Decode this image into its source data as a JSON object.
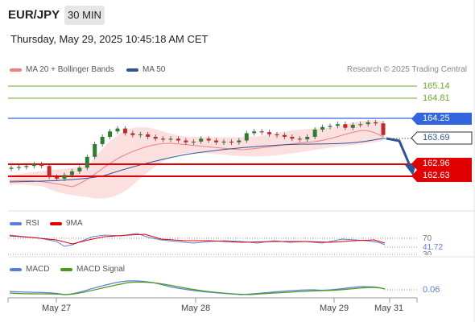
{
  "header": {
    "symbol": "EUR/JPY",
    "timeframe": "30 MIN",
    "datetime": "Thursday, May 29, 2025 10:45:18 AM CET"
  },
  "legend": {
    "ma20": {
      "label": "MA 20 + Bollinger Bands",
      "color": "#f08080"
    },
    "ma50": {
      "label": "MA 50",
      "color": "#2f5597"
    },
    "credit": "Research © 2025 Trading Central"
  },
  "levels": {
    "r2": "165.14",
    "r1": "164.81",
    "pivot": "164.25",
    "current": "163.69",
    "s1": "162.96",
    "s2": "162.63"
  },
  "rsi": {
    "label": "RSI",
    "ma_label": "9MA",
    "level_70": "70",
    "value": "41.72",
    "level_30": "30",
    "rsi_color": "#5b7fd6",
    "ma_color": "#e00000"
  },
  "macd": {
    "label": "MACD",
    "signal_label": "MACD Signal",
    "value": "0.06",
    "macd_color": "#5b7fd6",
    "signal_color": "#4a9a1a"
  },
  "xaxis": {
    "labels": [
      "May 27",
      "May 28",
      "May 29",
      "May 31"
    ]
  },
  "colors": {
    "up": "#2e7d32",
    "down": "#c62828",
    "resistance": "#6aaa2a",
    "pivot": "#3366dd",
    "support": "#e00000",
    "arrow": "#2f5597"
  },
  "chart_data": {
    "type": "candlestick",
    "series": [
      {
        "name": "Price",
        "values": [
          163.0,
          163.02,
          163.05,
          163.1,
          163.05,
          162.75,
          162.7,
          162.8,
          162.9,
          163.0,
          163.3,
          163.65,
          163.85,
          164.0,
          164.08,
          163.95,
          163.9,
          163.92,
          163.85,
          163.8,
          163.78,
          163.8,
          163.75,
          163.7,
          163.72,
          163.8,
          163.75,
          163.7,
          163.72,
          163.7,
          163.75,
          163.95,
          164.0,
          163.98,
          163.92,
          163.9,
          163.85,
          163.8,
          163.78,
          163.85,
          164.05,
          164.12,
          164.15,
          164.2,
          164.1,
          164.18,
          164.2,
          164.25,
          164.22,
          163.9
        ]
      },
      {
        "name": "MA 20",
        "values": []
      },
      {
        "name": "MA 50",
        "values": []
      }
    ],
    "ylim": [
      162.3,
      165.4
    ],
    "levels": [
      165.14,
      164.81,
      164.25,
      163.69,
      162.96,
      162.63
    ]
  }
}
